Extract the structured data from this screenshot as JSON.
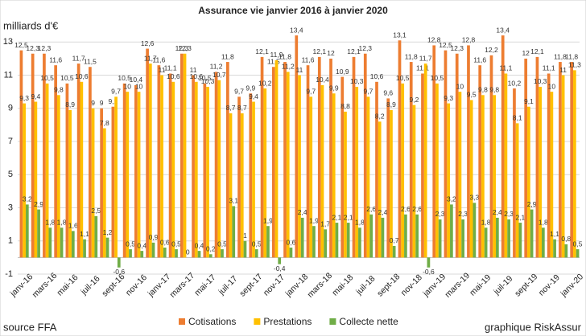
{
  "chart_data": {
    "type": "bar",
    "title": "Assurance vie janvier 2016 à janvier 2020",
    "y_label": "milliards d'€",
    "source": "source FFA",
    "credit": "graphique RiskAssur",
    "legend": "bottom",
    "grid": true,
    "ylim": [
      -1,
      13.5
    ],
    "yticks": [
      -1,
      1,
      3,
      5,
      7,
      9,
      11,
      13
    ],
    "categories": [
      "janv-16",
      null,
      "mars-16",
      null,
      "mai-16",
      null,
      "juil-16",
      null,
      "sept-16",
      null,
      "nov-16",
      null,
      "janv-17",
      null,
      "mars-17",
      null,
      "mai-17",
      null,
      "juil-17",
      null,
      "sept-17",
      null,
      "nov-17",
      null,
      "janv-18",
      null,
      "mars-18",
      null,
      "mai-18",
      null,
      "juil-18",
      null,
      "sept-18",
      null,
      "nov-18",
      null,
      "janv-19",
      null,
      "mars-19",
      null,
      "mai-19",
      null,
      "juil-19",
      null,
      "sept-19",
      null,
      "nov-19",
      null,
      "janv-20"
    ],
    "series": [
      {
        "name": "Cotisations",
        "color": "#ed7d31",
        "values": [
          12.5,
          12.3,
          12.3,
          11.6,
          10.5,
          11.7,
          11.5,
          9,
          9.1,
          10.5,
          10.4,
          12.6,
          11.6,
          11.1,
          12.3,
          11,
          10.5,
          11.2,
          11.8,
          9.7,
          9.9,
          12.1,
          11.5,
          11.8,
          13.4,
          11.6,
          12.1,
          12,
          10.9,
          12.1,
          12.3,
          10.6,
          9.6,
          13.1,
          11.8,
          11.1,
          12.8,
          12.5,
          12.3,
          12.8,
          11.6,
          12.2,
          13.4,
          10.2,
          12,
          12.1,
          11.1,
          11.8,
          11.8
        ],
        "value_labels": [
          "12,5",
          "12,3",
          "12,3",
          "11,6",
          "10,5",
          "11,7",
          "11,5",
          "9",
          "9,1",
          "10,5",
          "10,4",
          "12,6",
          "11,6",
          "11,1",
          "12,3",
          "11",
          "10,5",
          "11,2",
          "11,8",
          "9,7",
          "9,9",
          "12,1",
          "11,5",
          "11,8",
          "13,4",
          "11,6",
          "12,1",
          "12",
          "10,9",
          "12,1",
          "12,3",
          "10,6",
          "9,6",
          "13,1",
          "11,8",
          "11,1",
          "12,8",
          "12,5",
          "12,3",
          "12,8",
          "11,6",
          "12,2",
          "13,4",
          "10,2",
          "12",
          "12,1",
          "11,1",
          "11,8",
          "11,8"
        ]
      },
      {
        "name": "Prestations",
        "color": "#ffc000",
        "values": [
          9.3,
          9.4,
          10.5,
          9.8,
          8.9,
          10.6,
          9,
          7.8,
          9.7,
          10,
          10,
          11.7,
          11,
          10.6,
          12.3,
          10.6,
          10.3,
          10.7,
          8.7,
          8.7,
          9.4,
          10.2,
          11.9,
          11.2,
          11,
          9.7,
          10.4,
          9.9,
          8.8,
          10.3,
          9.7,
          8.2,
          8.9,
          10.5,
          9.2,
          11.7,
          10.5,
          9.3,
          10,
          9.5,
          9.8,
          9.8,
          11.1,
          8.1,
          9.1,
          10.3,
          10,
          11,
          11.3
        ],
        "value_labels": [
          "9,3",
          "9,4",
          "10,5",
          "9,8",
          "8,9",
          "10,6",
          "9",
          "7,8",
          "9,7",
          "10",
          "10",
          "11,7",
          "11",
          "10,6",
          "12,3",
          "10,6",
          "10,3",
          "10,7",
          "8,7",
          "8,7",
          "9,4",
          "10,2",
          "11,9",
          "11,2",
          "11",
          "9,7",
          "10,4",
          "9,9",
          "8,8",
          "10,3",
          "9,7",
          "8,2",
          "8,9",
          "10,5",
          "9,2",
          "11,7",
          "10,5",
          "9,3",
          "10",
          "9,5",
          "9,8",
          "9,8",
          "11,1",
          "8,1",
          "9,1",
          "10,3",
          "10",
          "11",
          "11,3"
        ]
      },
      {
        "name": "Collecte nette",
        "color": "#70ad47",
        "values": [
          3.2,
          2.9,
          1.8,
          1.8,
          1.6,
          1.1,
          2.5,
          1.2,
          -0.6,
          0.5,
          0.4,
          0.9,
          0.6,
          0.5,
          0,
          0.4,
          0.2,
          0.5,
          3.1,
          1,
          0.5,
          1.9,
          -0.4,
          0.6,
          2.4,
          1.9,
          1.7,
          2.1,
          2.1,
          1.8,
          2.6,
          2.4,
          0.7,
          2.6,
          2.6,
          -0.6,
          2.3,
          3.2,
          2.3,
          3.3,
          1.8,
          2.4,
          2.3,
          2.1,
          2.9,
          1.8,
          1.1,
          0.8,
          0.5
        ],
        "value_labels": [
          "3,2",
          "2,9",
          "1,8",
          "1,8",
          "1,6",
          "1,1",
          "2,5",
          "1,2",
          "-0,6",
          "0,5",
          "0,4",
          "0,9",
          "0,6",
          "0,5",
          "0",
          "0,4",
          "0,2",
          "0,5",
          "3,1",
          "1",
          "0,5",
          "1,9",
          "-0,4",
          "0,6",
          "2,4",
          "1,9",
          "1,7",
          "2,1",
          "2,1",
          "1,8",
          "2,6",
          "2,4",
          "0,7",
          "2,6",
          "2,6",
          "-0,6",
          "2,3",
          "3,2",
          "2,3",
          "3,3",
          "1,8",
          "2,4",
          "2,3",
          "2,1",
          "2,9",
          "1,8",
          "1,1",
          "0,8",
          "0,5"
        ]
      }
    ]
  }
}
